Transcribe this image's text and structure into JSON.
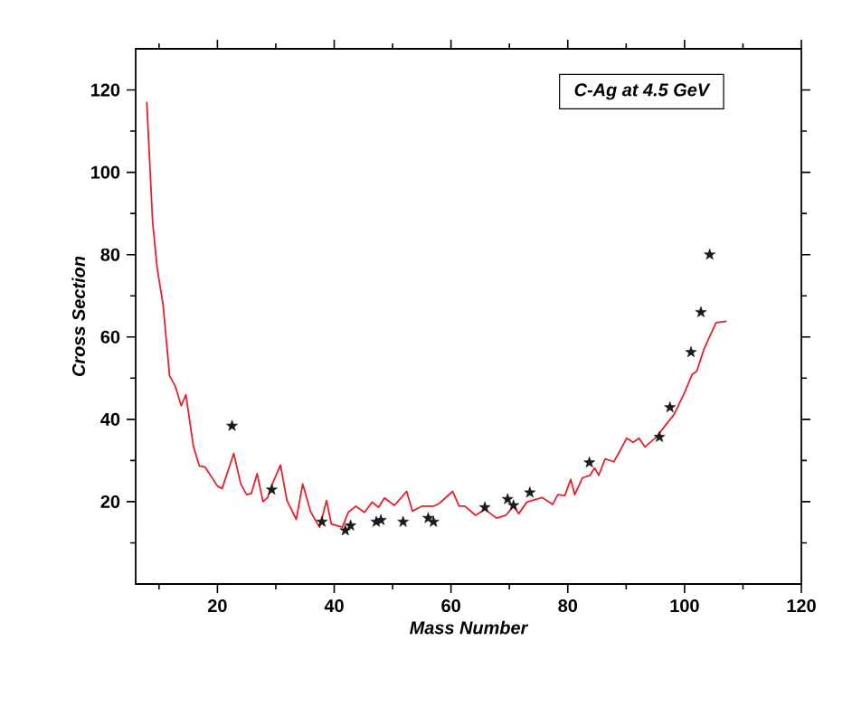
{
  "chart_data": {
    "type": "line",
    "title": "C-Ag at 4.5 GeV",
    "xlabel": "Mass Number",
    "ylabel": "Cross Section",
    "xlim": [
      6,
      120
    ],
    "ylim": [
      0,
      130
    ],
    "xticks": [
      {
        "value": 10,
        "label": null
      },
      20,
      {
        "value": 30,
        "label": null
      },
      40,
      {
        "value": 50,
        "label": null
      },
      60,
      {
        "value": 70,
        "label": null
      },
      80,
      {
        "value": 90,
        "label": null
      },
      100,
      {
        "value": 110,
        "label": null
      },
      120
    ],
    "yticks": [
      {
        "value": 10,
        "label": null
      },
      20,
      {
        "value": 30,
        "label": null
      },
      40,
      {
        "value": 50,
        "label": null
      },
      60,
      {
        "value": 70,
        "label": null
      },
      80,
      {
        "value": 90,
        "label": null
      },
      100,
      {
        "value": 110,
        "label": null
      },
      120
    ],
    "series": [
      {
        "color": "#e8202a",
        "marker": "none",
        "line_style": "solid",
        "x": [
          7.9,
          8.9,
          9.7,
          10.7,
          11.8,
          12.8,
          13.8,
          14.6,
          15.9,
          16.9,
          17.9,
          20,
          20.8,
          22.8,
          24,
          25,
          25.8,
          26.8,
          27.8,
          28.6,
          29.5,
          30.8,
          31.9,
          33.5,
          34.6,
          36,
          37.5,
          38.7,
          39.5,
          41.4,
          42.4,
          43.7,
          45.2,
          46.5,
          47.6,
          48.6,
          50.3,
          52.4,
          53.4,
          55,
          57,
          58,
          60.3,
          61.4,
          62.4,
          64.2,
          65.8,
          67.8,
          69.4,
          70.7,
          71.6,
          73,
          75.6,
          77.4,
          78.3,
          79.5,
          80.5,
          81.2,
          82.5,
          83.8,
          84.6,
          85.3,
          86.4,
          87.9,
          90.1,
          91.2,
          92.2,
          93.2,
          95.1,
          98.2,
          99.9,
          101.3,
          102.1,
          103.3,
          105.4,
          107.2
        ],
        "values": [
          117.1,
          88,
          76.5,
          67.8,
          50.6,
          48,
          43.3,
          46,
          33.3,
          28.7,
          28.4,
          23.8,
          23.2,
          31.7,
          24.3,
          21.7,
          22,
          26.8,
          20,
          21,
          24.6,
          28.9,
          20.3,
          15.7,
          24.3,
          17.4,
          13.8,
          20.3,
          14.6,
          13.8,
          17.4,
          18.9,
          17.4,
          19.9,
          18.6,
          20.9,
          19.1,
          22.5,
          17.7,
          18.9,
          18.9,
          19.6,
          22.5,
          18.9,
          18.9,
          16.7,
          18.1,
          16,
          16.7,
          18.9,
          17.1,
          19.9,
          21,
          19.3,
          21.7,
          21.5,
          25.4,
          21.7,
          25.8,
          26.4,
          28.2,
          26.4,
          30.4,
          29.7,
          35.4,
          34.4,
          35.4,
          33.3,
          35.6,
          41.2,
          46.2,
          50.9,
          51.7,
          57,
          63.5,
          63.8
        ]
      },
      {
        "type": "scatter",
        "color": "#1a1a1a",
        "marker": "star",
        "x": [
          22.5,
          29.3,
          37.9,
          41.9,
          42.8,
          47.2,
          48,
          51.8,
          56.1,
          57,
          65.8,
          69.7,
          70.7,
          73.5,
          83.7,
          95.7,
          97.5,
          101.1,
          102.8,
          104.3
        ],
        "values": [
          38.4,
          22.9,
          15.1,
          13,
          14.2,
          15.1,
          15.5,
          15.1,
          16,
          15.1,
          18.6,
          20.6,
          19.1,
          22.2,
          29.5,
          35.7,
          42.9,
          56.3,
          66,
          80
        ]
      }
    ]
  }
}
